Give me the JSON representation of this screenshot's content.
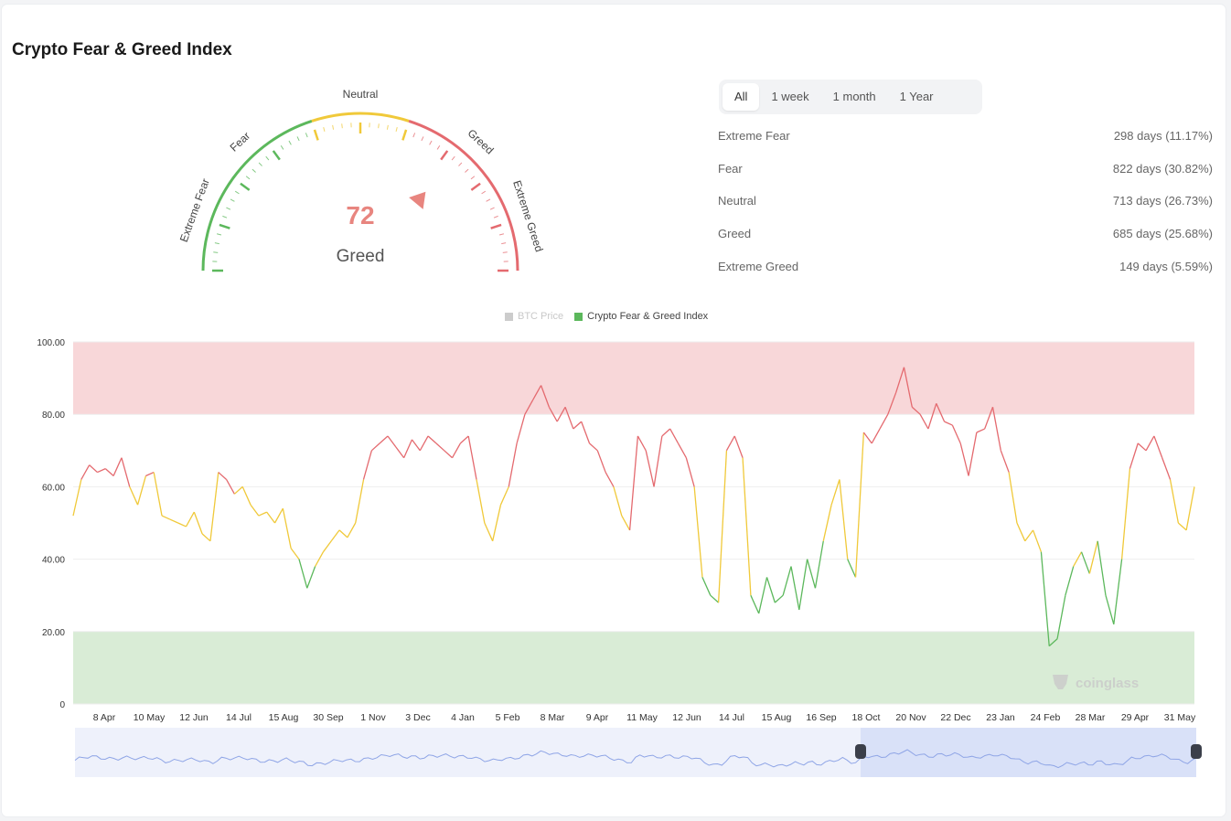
{
  "title": "Crypto Fear & Greed Index",
  "gauge": {
    "value": 72,
    "status": "Greed",
    "labels": [
      "Extreme Fear",
      "Fear",
      "Neutral",
      "Greed",
      "Extreme Greed"
    ],
    "colors": {
      "fear": "#5cb85c",
      "neutral": "#f0c93a",
      "greed": "#e46a6f",
      "value_text": "#e8857f"
    }
  },
  "tabs": [
    {
      "label": "All",
      "active": true
    },
    {
      "label": "1 week",
      "active": false
    },
    {
      "label": "1 month",
      "active": false
    },
    {
      "label": "1 Year",
      "active": false
    }
  ],
  "stats": [
    {
      "label": "Extreme Fear",
      "value": "298 days (11.17%)"
    },
    {
      "label": "Fear",
      "value": "822 days (30.82%)"
    },
    {
      "label": "Neutral",
      "value": "713 days (26.73%)"
    },
    {
      "label": "Greed",
      "value": "685 days (25.68%)"
    },
    {
      "label": "Extreme Greed",
      "value": "149 days (5.59%)"
    }
  ],
  "legend": [
    {
      "label": "BTC Price",
      "color": "#cccccc",
      "active": false
    },
    {
      "label": "Crypto Fear & Greed Index",
      "color": "#5cb85c",
      "active": true
    }
  ],
  "watermark": "coinglass",
  "chart_data": {
    "type": "line",
    "title": "",
    "xlabel": "",
    "ylabel": "",
    "ylim": [
      0,
      100
    ],
    "y_ticks": [
      "0",
      "20.00",
      "40.00",
      "60.00",
      "80.00",
      "100.00"
    ],
    "x_ticks": [
      "8 Apr",
      "10 May",
      "12 Jun",
      "14 Jul",
      "15 Aug",
      "30 Sep",
      "1 Nov",
      "3 Dec",
      "4 Jan",
      "5 Feb",
      "8 Mar",
      "9 Apr",
      "11 May",
      "12 Jun",
      "14 Jul",
      "15 Aug",
      "16 Sep",
      "18 Oct",
      "20 Nov",
      "22 Dec",
      "23 Jan",
      "24 Feb",
      "28 Mar",
      "29 Apr",
      "31 May"
    ],
    "zones": [
      {
        "from": 80,
        "to": 100,
        "color": "#f8d7d9"
      },
      {
        "from": 0,
        "to": 20,
        "color": "#d9ecd6"
      }
    ],
    "line_colors": {
      "above_60": "#e46a6f",
      "40_to_60": "#f0c93a",
      "below_40": "#5cb85c"
    },
    "series": [
      {
        "name": "Crypto Fear & Greed Index",
        "values": [
          52,
          62,
          66,
          64,
          65,
          63,
          68,
          60,
          55,
          63,
          64,
          52,
          51,
          50,
          49,
          53,
          47,
          45,
          64,
          62,
          58,
          60,
          55,
          52,
          53,
          50,
          54,
          43,
          40,
          32,
          38,
          42,
          45,
          48,
          46,
          50,
          62,
          70,
          72,
          74,
          71,
          68,
          73,
          70,
          74,
          72,
          70,
          68,
          72,
          74,
          62,
          50,
          45,
          55,
          60,
          72,
          80,
          84,
          88,
          82,
          78,
          82,
          76,
          78,
          72,
          70,
          64,
          60,
          52,
          48,
          74,
          70,
          60,
          74,
          76,
          72,
          68,
          60,
          35,
          30,
          28,
          70,
          74,
          68,
          30,
          25,
          35,
          28,
          30,
          38,
          26,
          40,
          32,
          45,
          55,
          62,
          40,
          35,
          75,
          72,
          76,
          80,
          86,
          93,
          82,
          80,
          76,
          83,
          78,
          77,
          72,
          63,
          75,
          76,
          82,
          70,
          64,
          50,
          45,
          48,
          42,
          16,
          18,
          30,
          38,
          42,
          36,
          45,
          30,
          22,
          40,
          65,
          72,
          70,
          74,
          68,
          62,
          50,
          48,
          60
        ]
      }
    ]
  }
}
